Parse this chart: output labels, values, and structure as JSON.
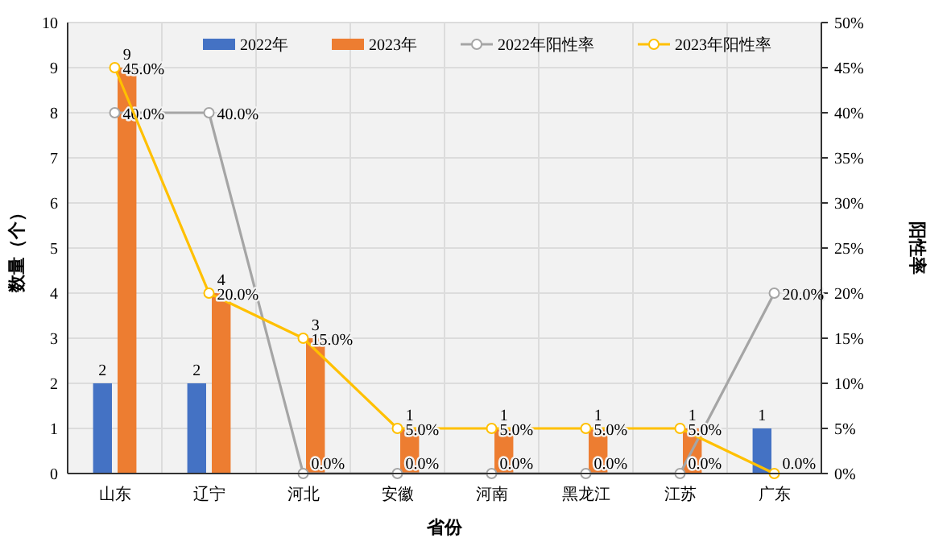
{
  "chart_data": {
    "type": "bar",
    "xlabel": "省份",
    "ylabel": "数量（个）",
    "y2label": "阳性率",
    "categories": [
      "山东",
      "辽宁",
      "河北",
      "安徽",
      "河南",
      "黑龙江",
      "江苏",
      "广东"
    ],
    "series": [
      {
        "name": "2022年",
        "color": "#4472c4",
        "values": [
          2,
          2,
          0,
          0,
          0,
          0,
          0,
          1
        ],
        "value_labels": [
          "2",
          "2",
          null,
          null,
          null,
          null,
          null,
          "1"
        ]
      },
      {
        "name": "2023年",
        "color": "#ed7d31",
        "values": [
          9,
          4,
          3,
          1,
          1,
          1,
          1,
          0
        ],
        "value_labels": [
          "9",
          "4",
          "3",
          "1",
          "1",
          "1",
          "1",
          null
        ]
      },
      {
        "name": "2022年阳性率",
        "type": "line",
        "axis": "y2",
        "color": "#a5a5a5",
        "marker": "circle",
        "values": [
          40,
          40,
          0,
          0,
          0,
          0,
          0,
          20
        ],
        "value_labels": [
          "40.0%",
          "40.0%",
          "0.0%",
          "0.0%",
          "0.0%",
          "0.0%",
          "0.0%",
          "20.0%"
        ]
      },
      {
        "name": "2023年阳性率",
        "type": "line",
        "axis": "y2",
        "color": "#ffc000",
        "marker": "circle",
        "values": [
          45,
          20,
          15,
          5,
          5,
          5,
          5,
          0
        ],
        "value_labels": [
          "45.0%",
          "20.0%",
          "15.0%",
          "5.0%",
          "5.0%",
          "5.0%",
          "5.0%",
          "0.0%"
        ]
      }
    ],
    "ylim": [
      0,
      10
    ],
    "yticks": [
      0,
      1,
      2,
      3,
      4,
      5,
      6,
      7,
      8,
      9,
      10
    ],
    "y2lim": [
      0,
      50
    ],
    "y2ticks": [
      {
        "value": 0,
        "label": "0%"
      },
      {
        "value": 5,
        "label": "5%"
      },
      {
        "value": 10,
        "label": "10%"
      },
      {
        "value": 15,
        "label": "15%"
      },
      {
        "value": 20,
        "label": "20%"
      },
      {
        "value": 25,
        "label": "25%"
      },
      {
        "value": 30,
        "label": "30%"
      },
      {
        "value": 35,
        "label": "35%"
      },
      {
        "value": 40,
        "label": "40%"
      },
      {
        "value": 45,
        "label": "45%"
      },
      {
        "value": 50,
        "label": "50%"
      }
    ],
    "grid": true,
    "legend": "top"
  }
}
